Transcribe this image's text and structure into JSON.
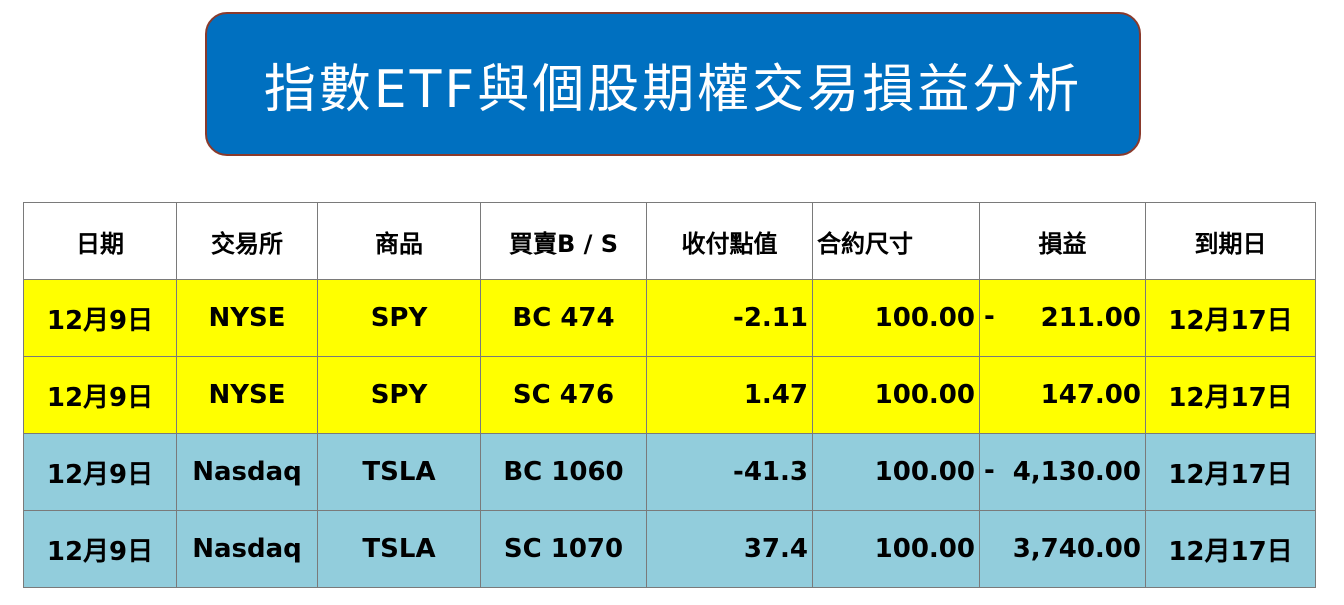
{
  "title": "指數ETF與個股期權交易損益分析",
  "colors": {
    "title_bg": "#0070c0",
    "row_nyse": "#ffff00",
    "row_nasdaq": "#92cddc"
  },
  "table": {
    "headers": [
      "日期",
      "交易所",
      "商品",
      "買賣B / S",
      "收付點值",
      "合約尺寸",
      "損益",
      "到期日"
    ],
    "rows": [
      {
        "date": "12月9日",
        "exchange": "NYSE",
        "product": "SPY",
        "bs": "BC 474",
        "points": "-2.11",
        "size": "100.00",
        "pnl_sign": "-",
        "pnl": "211.00",
        "expiry": "12月17日"
      },
      {
        "date": "12月9日",
        "exchange": "NYSE",
        "product": "SPY",
        "bs": "SC 476",
        "points": "1.47",
        "size": "100.00",
        "pnl_sign": "",
        "pnl": "147.00",
        "expiry": "12月17日"
      },
      {
        "date": "12月9日",
        "exchange": "Nasdaq",
        "product": "TSLA",
        "bs": "BC 1060",
        "points": "-41.3",
        "size": "100.00",
        "pnl_sign": "-",
        "pnl": "4,130.00",
        "expiry": "12月17日"
      },
      {
        "date": "12月9日",
        "exchange": "Nasdaq",
        "product": "TSLA",
        "bs": "SC 1070",
        "points": "37.4",
        "size": "100.00",
        "pnl_sign": "",
        "pnl": "3,740.00",
        "expiry": "12月17日"
      }
    ]
  }
}
